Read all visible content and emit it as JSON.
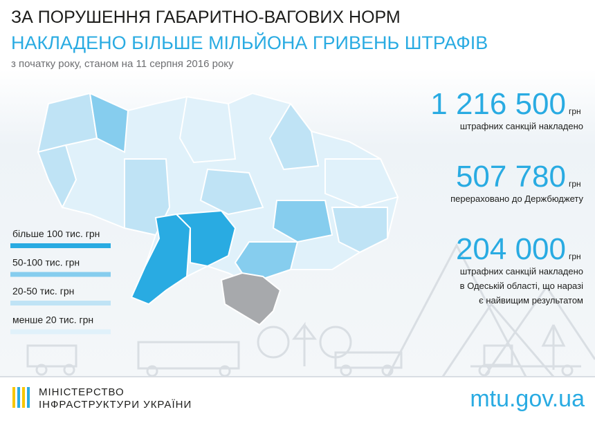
{
  "header": {
    "title_line1": "ЗА ПОРУШЕННЯ ГАБАРИТНО-ВАГОВИХ НОРМ",
    "title_line2": "НАКЛАДЕНО БІЛЬШЕ МІЛЬЙОНА ГРИВЕНЬ ШТРАФІВ",
    "subtitle": "з початку року, станом на 11 серпня 2016 року"
  },
  "legend": [
    {
      "label": "більше 100 тис. грн",
      "color": "#29abe2"
    },
    {
      "label": "50-100 тис. грн",
      "color": "#86cdee"
    },
    {
      "label": "20-50 тис. грн",
      "color": "#bfe3f5"
    },
    {
      "label": "менше 20 тис. грн",
      "color": "#e0f1fa"
    }
  ],
  "stats": [
    {
      "value": "1 216 500",
      "unit": "грн",
      "caption": [
        "штрафних санкцій накладено"
      ]
    },
    {
      "value": "507 780",
      "unit": "грн",
      "caption": [
        "перераховано до Держбюджету"
      ]
    },
    {
      "value": "204 000",
      "unit": "грн",
      "caption": [
        "штрафних санкцій накладено",
        "в Одеській області, що наразі",
        "є найвищим результатом"
      ]
    }
  ],
  "footer": {
    "org_line1": "МІНІСТЕРСТВО",
    "org_line2": "ІНФРАСТРУКТУРИ УКРАЇНИ",
    "url": "mtu.gov.ua"
  }
}
